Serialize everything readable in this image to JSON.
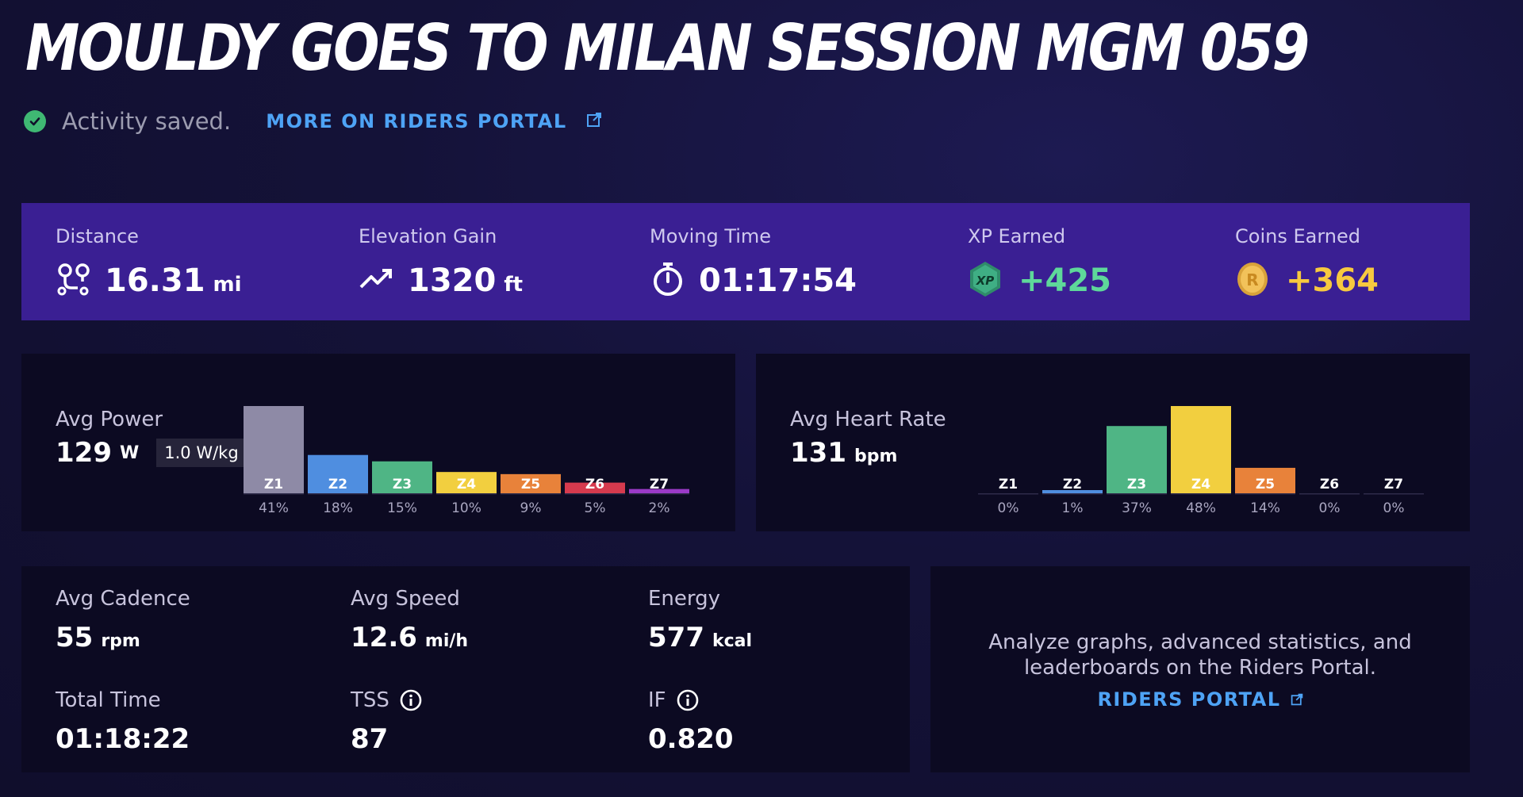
{
  "title": "MOULDY GOES TO MILAN SESSION MGM 059",
  "status": {
    "saved_text": "Activity saved.",
    "portal_link": "MORE ON RIDERS PORTAL"
  },
  "stats": {
    "distance": {
      "label": "Distance",
      "value": "16.31",
      "unit": "mi"
    },
    "elevation": {
      "label": "Elevation Gain",
      "value": "1320",
      "unit": "ft"
    },
    "moving_time": {
      "label": "Moving Time",
      "value": "01:17:54"
    },
    "xp": {
      "label": "XP Earned",
      "value": "+425",
      "icon_text": "XP"
    },
    "coins": {
      "label": "Coins Earned",
      "value": "+364",
      "icon_text": "R"
    }
  },
  "power": {
    "label": "Avg Power",
    "value": "129",
    "unit": "W",
    "wkg": "1.0 W/kg"
  },
  "heart_rate": {
    "label": "Avg Heart Rate",
    "value": "131",
    "unit": "bpm"
  },
  "chart_data": [
    {
      "type": "bar",
      "categories": [
        "Z1",
        "Z2",
        "Z3",
        "Z4",
        "Z5",
        "Z6",
        "Z7"
      ],
      "values": [
        41,
        18,
        15,
        10,
        9,
        5,
        2
      ],
      "value_labels": [
        "41%",
        "18%",
        "15%",
        "10%",
        "9%",
        "5%",
        "2%"
      ],
      "colors": [
        "#8e8aa6",
        "#4f8ee0",
        "#4fb585",
        "#f2cf3f",
        "#e8823a",
        "#d63a4e",
        "#9b3ac8"
      ],
      "title": "",
      "xlabel": "",
      "ylabel": "",
      "ylim": [
        0,
        41
      ]
    },
    {
      "type": "bar",
      "categories": [
        "Z1",
        "Z2",
        "Z3",
        "Z4",
        "Z5",
        "Z6",
        "Z7"
      ],
      "values": [
        0,
        1,
        37,
        48,
        14,
        0,
        0
      ],
      "value_labels": [
        "0%",
        "1%",
        "37%",
        "48%",
        "14%",
        "0%",
        "0%"
      ],
      "colors": [
        "#8e8aa6",
        "#4f8ee0",
        "#4fb585",
        "#f2cf3f",
        "#e8823a",
        "#d63a4e",
        "#9b3ac8"
      ],
      "title": "",
      "xlabel": "",
      "ylabel": "",
      "ylim": [
        0,
        48
      ]
    }
  ],
  "details": {
    "cadence": {
      "label": "Avg Cadence",
      "value": "55",
      "unit": "rpm"
    },
    "speed": {
      "label": "Avg Speed",
      "value": "12.6",
      "unit": "mi/h"
    },
    "energy": {
      "label": "Energy",
      "value": "577",
      "unit": "kcal"
    },
    "total_time": {
      "label": "Total Time",
      "value": "01:18:22"
    },
    "tss": {
      "label": "TSS",
      "value": "87"
    },
    "if": {
      "label": "IF",
      "value": "0.820"
    }
  },
  "promo": {
    "line1": "Analyze graphs, advanced statistics, and",
    "line2": "leaderboards on the Riders Portal.",
    "link": "RIDERS PORTAL"
  },
  "colors": {
    "accent_blue": "#4ea3f5",
    "stats_bar": "#3a1f93",
    "success": "#3fb873",
    "xp_green": "#5ed89a",
    "coin_gold": "#f7c93f"
  }
}
